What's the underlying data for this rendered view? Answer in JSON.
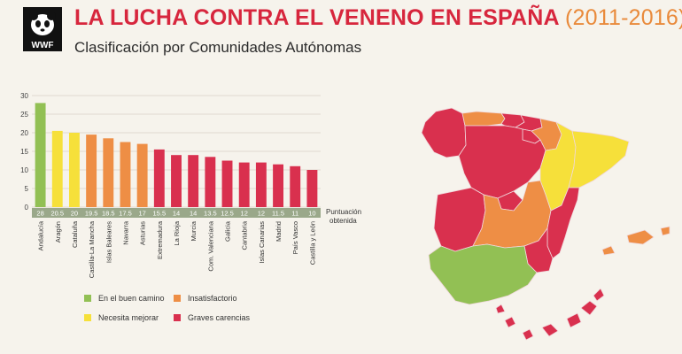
{
  "header": {
    "logo_text": "WWF",
    "title": "LA LUCHA CONTRA EL VENENO EN ESPAÑA",
    "title_years": "(2011-2016)",
    "subtitle": "Clasificación por Comunidades Autónomas"
  },
  "colors": {
    "title": "#d7263d",
    "years": "#e98a3b",
    "green": "#92c054",
    "yellow": "#f6e03a",
    "orange": "#ee8e45",
    "red": "#d9304e",
    "score_bar": "#9aa88a"
  },
  "chart_data": {
    "type": "bar",
    "title": "",
    "xlabel": "",
    "ylabel": "",
    "ylim": [
      0,
      30
    ],
    "yticks": [
      0,
      5,
      10,
      15,
      20,
      25,
      30
    ],
    "grid": true,
    "score_row_label": "Puntuación obtenida",
    "categories": [
      "Andalucía",
      "Aragón",
      "Cataluña",
      "Castilla-La Mancha",
      "Islas Baleares",
      "Navarra",
      "Asturias",
      "Extremadura",
      "La Rioja",
      "Murcia",
      "Com. Valenciana",
      "Galicia",
      "Cantabria",
      "Islas Canarias",
      "Madrid",
      "País Vasco",
      "Castilla y León"
    ],
    "values": [
      28,
      20.5,
      20,
      19.5,
      18.5,
      17.5,
      17,
      15.5,
      14,
      14,
      13.5,
      12.5,
      12,
      12,
      11.5,
      11,
      10
    ],
    "value_labels": [
      "28",
      "20.5",
      "20",
      "19.5",
      "18.5",
      "17.5",
      "17",
      "15.5",
      "14",
      "14",
      "13.5",
      "12.5",
      "12",
      "12",
      "11.5",
      "11",
      "10"
    ],
    "classes": [
      "green",
      "yellow",
      "yellow",
      "orange",
      "orange",
      "orange",
      "orange",
      "red",
      "red",
      "red",
      "red",
      "red",
      "red",
      "red",
      "red",
      "red",
      "red"
    ],
    "legend": [
      {
        "key": "green",
        "label": "En el buen camino"
      },
      {
        "key": "orange",
        "label": "Insatisfactorio"
      },
      {
        "key": "yellow",
        "label": "Necesita mejorar"
      },
      {
        "key": "red",
        "label": "Graves carencias"
      }
    ]
  }
}
